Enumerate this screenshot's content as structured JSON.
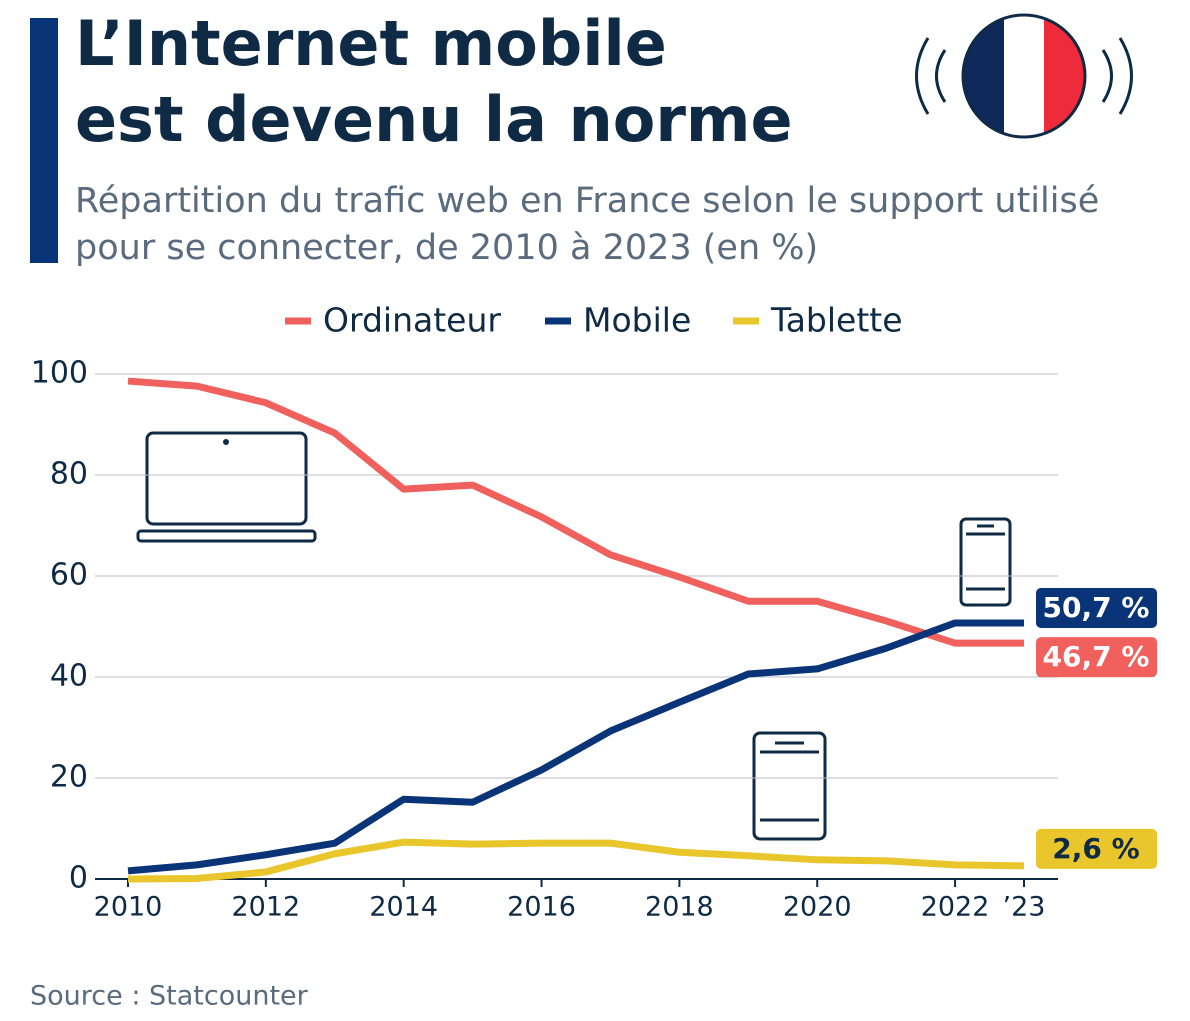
{
  "chart_data": {
    "type": "line",
    "title": [
      "L’Internet mobile",
      "est devenu la norme"
    ],
    "subtitle": [
      "Répartition du trafic web en France selon le support utilisé",
      "pour se connecter, de 2010 à 2023 (en %)"
    ],
    "source": "Source : Statcounter",
    "x": [
      2010,
      2011,
      2012,
      2013,
      2014,
      2015,
      2016,
      2017,
      2018,
      2019,
      2020,
      2021,
      2022,
      2023
    ],
    "xlim": [
      2010,
      2023
    ],
    "xticks": [
      2010,
      2012,
      2014,
      2016,
      2018,
      2020,
      2022,
      {
        "value": 2023,
        "label": "’23"
      }
    ],
    "ylim": [
      0,
      100
    ],
    "yticks": [
      0,
      20,
      40,
      60,
      80,
      100
    ],
    "grid": true,
    "legend": "top",
    "series": [
      {
        "name": "Ordinateur",
        "color": "#f0605d",
        "values": [
          98.6,
          97.6,
          94.3,
          88.3,
          77.2,
          78.0,
          71.7,
          64.2,
          59.8,
          55.0,
          55.0,
          51.1,
          46.7,
          46.7
        ],
        "value_labels": [
          null,
          null,
          null,
          null,
          null,
          null,
          null,
          null,
          null,
          null,
          null,
          null,
          null,
          "46,7 %"
        ]
      },
      {
        "name": "Mobile",
        "color": "#0a3478",
        "values": [
          1.6,
          2.8,
          4.8,
          7.1,
          15.8,
          15.2,
          21.6,
          29.3,
          35.0,
          40.6,
          41.6,
          45.7,
          50.7,
          50.7
        ],
        "value_labels": [
          null,
          null,
          null,
          null,
          null,
          null,
          null,
          null,
          null,
          null,
          null,
          null,
          null,
          "50,7 %"
        ]
      },
      {
        "name": "Tablette",
        "color": "#e8c62c",
        "values": [
          0,
          0.1,
          1.4,
          5.0,
          7.3,
          6.9,
          7.1,
          7.1,
          5.3,
          4.6,
          3.8,
          3.6,
          2.8,
          2.6
        ],
        "value_labels": [
          null,
          null,
          null,
          null,
          null,
          null,
          null,
          null,
          null,
          null,
          null,
          null,
          null,
          "2,6 %"
        ]
      }
    ]
  }
}
